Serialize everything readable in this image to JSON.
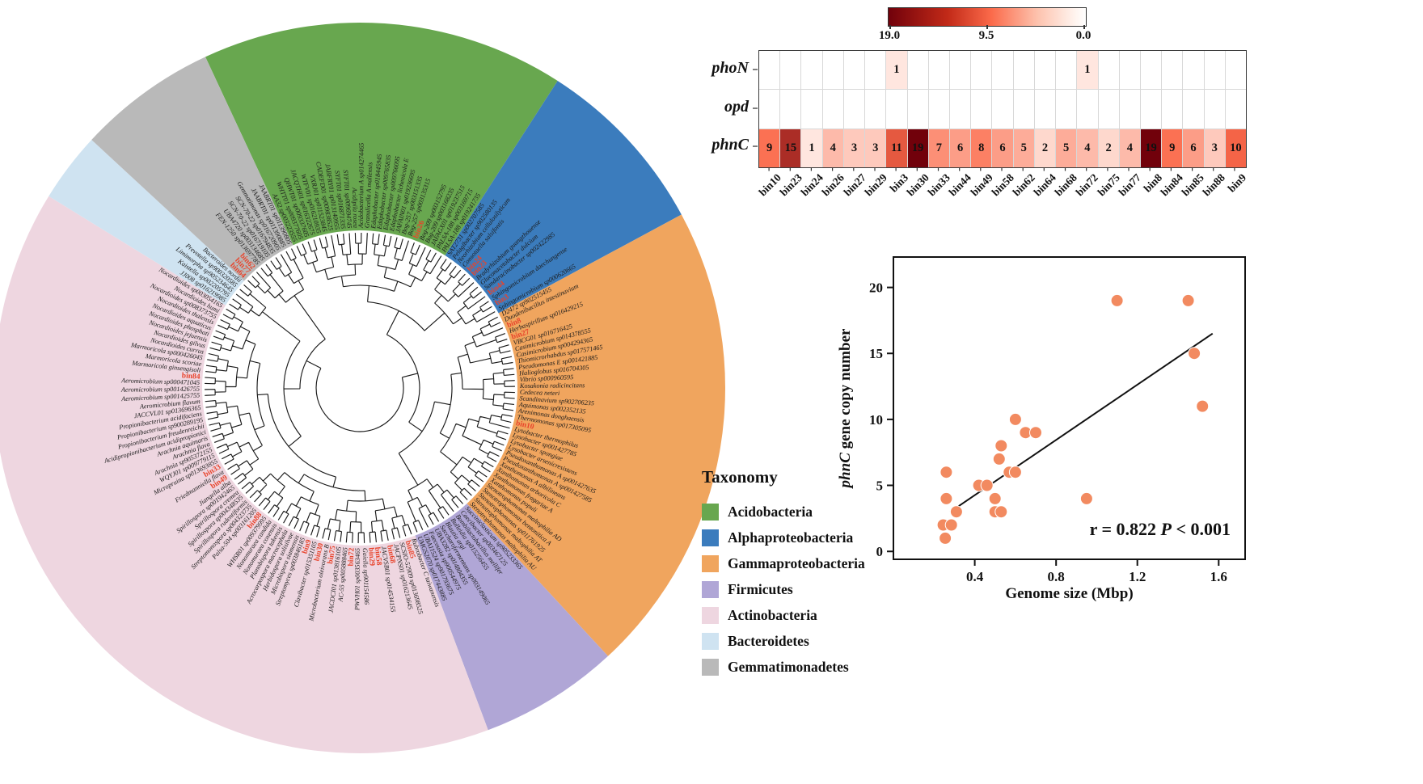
{
  "taxonomy_legend": {
    "title": "Taxonomy",
    "items": [
      {
        "label": "Acidobacteria",
        "color": "#68a74f"
      },
      {
        "label": "Alphaproteobacteria",
        "color": "#3b7cbd"
      },
      {
        "label": "Gammaproteobacteria",
        "color": "#f0a55e"
      },
      {
        "label": "Firmicutes",
        "color": "#b0a6d6"
      },
      {
        "label": "Actinobacteria",
        "color": "#eed6e0"
      },
      {
        "label": "Bacteroidetes",
        "color": "#cfe3f1"
      },
      {
        "label": "Gemmatimonadetes",
        "color": "#b9b9b9"
      }
    ]
  },
  "tree": {
    "bin_color": "#e8432b",
    "label_color": "#1a1a1a",
    "sections": [
      {
        "name": "Acidobacteria",
        "color": "#68a74f",
        "leaves": [
          "AA32 sp003223555",
          "WHTT01 sp009377605",
          "QHWT01 sp009337605",
          "JACQTH01 sp016322675",
          "WTFV01 sp016210935",
          "VXRJ01 sp011523845",
          "CADEFD01 sp009838525",
          "JABFRY01 sp013140955",
          "SYFT01 sp016871335",
          "SYFT01 sp009694745",
          "Acidipila rosea",
          "Acidobacterium A sp014274465",
          "Granulicella A mallensis",
          "Edaphobacter sp018445945",
          "Edaphobacter sp009765835",
          "Edaphobacter sp009766095",
          "Edaphobacter lichenicola E",
          "JAFAIN01 sp019236695",
          "Bog-257 sp003151335",
          "Bog-257 sp003135315",
          "bin26",
          "Bog-209 sp003152795",
          "Bog-209 sp003168235",
          "JAFAGX01 sp019237515",
          "PALSA-188 sp003169715",
          "PALSA-188 sp019241735"
        ]
      },
      {
        "name": "Alphaproteobacteria",
        "color": "#3b7cbd",
        "leaves": [
          "SAT2731 sp002707585",
          "Pelagibacter sp902580135",
          "Neorhizobium cellulosilyticum",
          "Consotaella salsifontis",
          "bin24",
          "bin23",
          "Bradyrhizobium guangzhouense",
          "Gluconacetobacter dulcium",
          "Sandaracinobacter sp002422985",
          "bin44",
          "Sphingomicrobium daechungense",
          "bin3",
          "Sphingomicrobium sp000620665"
        ]
      },
      {
        "name": "Gammaproteobacteria",
        "color": "#f0a55e",
        "leaves": [
          "D2472 sp902515455",
          "Duodenibacillus intestinavium",
          "bin8",
          "Herbaspirillum sp016429215",
          "bin27",
          "VBCG01 sp016716425",
          "Casimicrobium sp014378555",
          "Casimicrobium sp004294365",
          "Thiomicrorhabdus sp017571465",
          "Pseudomonas E sp001421885",
          "Halioglobus sp016704305",
          "Vibrio sp000960595",
          "Kosakonia radicincitans",
          "Cedecea neteri",
          "Scandinavium sp902706235",
          "Aquimonas sp002352135",
          "Arenimonas donghaensis",
          "Thermomonas sp017305095",
          "bin10",
          "Lysobacter thermophilus",
          "Lysobacter sp001427785",
          "Lysobacter spongiae",
          "Lysobacter arsenicresistens",
          "Pseudoxanthomonas A sp001427635",
          "Pseudoxanthomonas A sp001427585",
          "Xanthomonas A albilineans",
          "Xanthomonas arboricola C",
          "Xanthomonas fragariae A",
          "Xanthomonas populi",
          "Stenotrophomonas maltophilia AD",
          "Stenotrophomonas bentonitica A",
          "Stenotrophomonas sp011761925",
          "Stenotrophomonas maltophilia AT",
          "Stenotrophomonas maltophilia AU"
        ]
      },
      {
        "name": "Firmicutes",
        "color": "#b0a6d6",
        "leaves": [
          "Succiniclasticum sp905233365",
          "Caecibacter sp003467125",
          "Bombilactobacillus mellifer",
          "Bulleidia sp015256455",
          "Blautia argi",
          "Saccharofermentans sp003149065",
          "UBA3282 sp014804355",
          "Faecousia sp900544975",
          "UBA11524 sp901793675",
          "UMGS2070 sp017443885"
        ]
      },
      {
        "name": "Actinobacteria",
        "color": "#eed6e0",
        "leaves": [
          "Rubrobacter C taiwanensis",
          "bin85",
          "SCSIO-52909 sp013698525",
          "JACPNS01 sp016213645",
          "bin68",
          "JACVSB01 sp014534155",
          "bin58",
          "bin29",
          "Gaiella sp901154586",
          "PWVH01 sp003563465",
          "bin72",
          "AC-55 sp005888465",
          "JACDCI01 sp013816105",
          "bin75",
          "Microbacterium oleivorans B",
          "bin30",
          "Clavibacter sp015351105",
          "bin9",
          "Streptomyces sp003846185",
          "Microbispora siamensis",
          "Herbidospora solisilvae",
          "Acrocarpospora macrocephala",
          "Planobispora takensis",
          "Nonomuraea coxensis",
          "Nonomuraea candida",
          "WHSR01 sp009379995",
          "bin88",
          "Palsa-504 sp003161205",
          "Streptomonospora sp004323735",
          "Spirillospora rudentiformis",
          "Spirillospora sp004348535",
          "Spirillospora cremea",
          "Spirillospora sp001942465",
          "Jiangella alba",
          "bin49",
          "Friedmanniella flava",
          "bin33",
          "Micropruina sp013693855",
          "WQYJ01 sp009779115",
          "Arachnia sp905372155",
          "Arachnia flava",
          "Arachnia aquimaris",
          "Acidipropionibacterium acidipropionici",
          "Propionibacterium freudenreichii",
          "Propionibacterium sp900289195",
          "Propionibacterium acidifaciens",
          "JACCVL01 sp013696365",
          "Aeromicrobium flavum",
          "Aeromicrobium sp001425755",
          "Aeromicrobium sp001426755",
          "Aeromicrobium sp000471045",
          "bin84",
          "Marmoricola ginsengisoli",
          "Marmoricola scoriae",
          "Marmoricola sp000426045",
          "Nocardioides currus",
          "Nocardioides gilvus",
          "Nocardioides jejuensis",
          "Nocardioides phosphati",
          "Nocardioides aquaticus",
          "Nocardioides thalensis",
          "Nocardioides sp008373755",
          "Nocardioides humi",
          "Nocardioides sp003054165"
        ]
      },
      {
        "name": "Bacteroidetes",
        "color": "#cfe3f1",
        "leaves": [
          "JJ008 sp016219985",
          "Kaistella sp002205795",
          "Limimorpha sp905234645",
          "Prevotella sp900320585",
          "Bacteroides nordii"
        ]
      },
      {
        "name": "Gemmatimonadetes",
        "color": "#b9b9b9",
        "leaves": [
          "bin64",
          "bin77",
          "bin62",
          "FEN-1250 sp013697785",
          "UBA4720 sp003134685",
          "SCN-70-22 sp016719105",
          "SCN-70-22 sp016794835",
          "Gemmatimonas sp016720905",
          "JAABRT01 sp011390885",
          "JAABRT01 sp011390805"
        ]
      }
    ]
  },
  "chart_data": [
    {
      "type": "heatmap",
      "rows": [
        "phoN",
        "opd",
        "phnC"
      ],
      "columns": [
        "bin10",
        "bin23",
        "bin24",
        "bin26",
        "bin27",
        "bin29",
        "bin3",
        "bin30",
        "bin33",
        "bin44",
        "bin49",
        "bin58",
        "bin62",
        "bin64",
        "bin68",
        "bin72",
        "bin75",
        "bin77",
        "bin8",
        "bin84",
        "bin85",
        "bin88",
        "bin9"
      ],
      "values": [
        [
          0,
          0,
          0,
          0,
          0,
          0,
          1,
          0,
          0,
          0,
          0,
          0,
          0,
          0,
          0,
          1,
          0,
          0,
          0,
          0,
          0,
          0,
          0
        ],
        [
          0,
          0,
          0,
          0,
          0,
          0,
          0,
          0,
          0,
          0,
          0,
          0,
          0,
          0,
          0,
          0,
          0,
          0,
          0,
          0,
          0,
          0,
          0
        ],
        [
          9,
          15,
          1,
          4,
          3,
          3,
          11,
          19,
          7,
          6,
          8,
          6,
          5,
          2,
          5,
          4,
          2,
          4,
          19,
          9,
          6,
          3,
          10
        ]
      ],
      "colorbar": {
        "ticks": [
          "19.0",
          "9.5",
          "0.0"
        ],
        "max": 19,
        "min": 0
      },
      "colormap_stops": [
        "#fff5f0",
        "#fb6a4a",
        "#71010b"
      ]
    },
    {
      "type": "scatter",
      "xlabel": "Genome size (Mbp)",
      "ylabel_italic": "phnC",
      "ylabel_rest": " gene copy number",
      "x_ticks": [
        "0.4",
        "0.8",
        "1.2",
        "1.6"
      ],
      "y_ticks": [
        "0",
        "5",
        "10",
        "15",
        "20"
      ],
      "xlim": [
        0,
        1.73
      ],
      "ylim": [
        -0.6,
        22.3
      ],
      "points": [
        [
          0.26,
          6
        ],
        [
          0.26,
          4
        ],
        [
          0.245,
          2
        ],
        [
          0.255,
          1
        ],
        [
          0.285,
          2
        ],
        [
          0.31,
          3
        ],
        [
          0.42,
          5
        ],
        [
          0.46,
          5
        ],
        [
          0.5,
          4
        ],
        [
          0.5,
          3
        ],
        [
          0.53,
          3
        ],
        [
          0.57,
          6
        ],
        [
          0.6,
          6
        ],
        [
          0.52,
          7
        ],
        [
          0.53,
          8
        ],
        [
          0.6,
          10
        ],
        [
          0.65,
          9
        ],
        [
          0.7,
          9
        ],
        [
          0.95,
          4
        ],
        [
          1.1,
          19
        ],
        [
          1.45,
          19
        ],
        [
          1.48,
          15
        ],
        [
          1.52,
          11
        ]
      ],
      "trend_line": {
        "x1": 0.28,
        "y1": 3.0,
        "x2": 1.57,
        "y2": 16.5
      },
      "point_color": "#F28A60",
      "annotation": {
        "r": "r = 0.822",
        "p_italic": "P",
        "p_rest": " < 0.001"
      }
    }
  ]
}
